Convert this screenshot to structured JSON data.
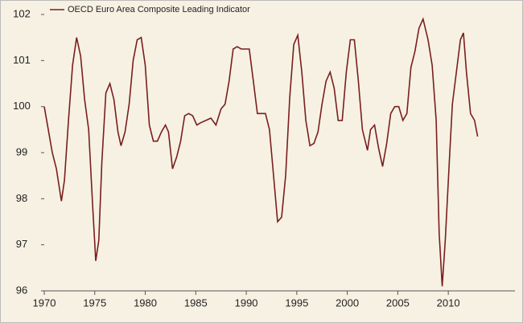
{
  "chart_data": {
    "type": "line",
    "x": [
      1970,
      1970.4,
      1970.8,
      1971.2,
      1971.7,
      1972.0,
      1972.4,
      1972.8,
      1973.2,
      1973.6,
      1974.0,
      1974.4,
      1974.8,
      1975.1,
      1975.4,
      1975.7,
      1976.1,
      1976.5,
      1976.9,
      1977.3,
      1977.6,
      1978.0,
      1978.4,
      1978.8,
      1979.2,
      1979.6,
      1980.0,
      1980.4,
      1980.8,
      1981.2,
      1981.6,
      1982.0,
      1982.3,
      1982.7,
      1983.1,
      1983.5,
      1983.9,
      1984.3,
      1984.7,
      1985.1,
      1985.5,
      1986.0,
      1986.5,
      1987.0,
      1987.5,
      1987.9,
      1988.3,
      1988.7,
      1989.1,
      1989.5,
      1989.9,
      1990.3,
      1990.7,
      1991.1,
      1991.5,
      1991.9,
      1992.3,
      1992.7,
      1993.1,
      1993.5,
      1993.9,
      1994.3,
      1994.7,
      1995.1,
      1995.5,
      1995.9,
      1996.3,
      1996.7,
      1997.1,
      1997.5,
      1997.9,
      1998.3,
      1998.7,
      1999.1,
      1999.5,
      1999.9,
      2000.3,
      2000.7,
      2001.1,
      2001.5,
      2002.0,
      2002.3,
      2002.7,
      2003.1,
      2003.5,
      2003.9,
      2004.3,
      2004.7,
      2005.1,
      2005.5,
      2005.9,
      2006.3,
      2006.7,
      2007.1,
      2007.5,
      2008.0,
      2008.4,
      2008.8,
      2009.1,
      2009.4,
      2009.7,
      2010.1,
      2010.4,
      2010.8,
      2011.2,
      2011.5,
      2011.8,
      2012.2,
      2012.6,
      2012.9
    ],
    "series": [
      {
        "name": "OECD Euro Area Composite Leading Indicator",
        "color": "#7a1e1e",
        "values": [
          100.0,
          99.5,
          99.0,
          98.65,
          97.95,
          98.4,
          99.7,
          100.9,
          101.5,
          101.1,
          100.15,
          99.5,
          97.8,
          96.65,
          97.1,
          98.8,
          100.3,
          100.5,
          100.15,
          99.45,
          99.15,
          99.45,
          100.05,
          101.0,
          101.45,
          101.5,
          100.9,
          99.6,
          99.25,
          99.25,
          99.45,
          99.6,
          99.45,
          98.65,
          98.9,
          99.25,
          99.8,
          99.85,
          99.8,
          99.6,
          99.65,
          99.7,
          99.75,
          99.6,
          99.95,
          100.05,
          100.55,
          101.25,
          101.3,
          101.25,
          101.25,
          101.25,
          100.55,
          99.85,
          99.85,
          99.85,
          99.5,
          98.5,
          97.5,
          97.6,
          98.5,
          100.2,
          101.35,
          101.55,
          100.75,
          99.7,
          99.15,
          99.2,
          99.45,
          100.05,
          100.55,
          100.75,
          100.4,
          99.7,
          99.7,
          100.75,
          101.45,
          101.45,
          100.55,
          99.5,
          99.05,
          99.5,
          99.6,
          99.1,
          98.7,
          99.2,
          99.85,
          100.0,
          100.0,
          99.7,
          99.85,
          100.85,
          101.2,
          101.7,
          101.9,
          101.45,
          100.9,
          99.7,
          97.25,
          96.1,
          97.1,
          98.8,
          100.05,
          100.75,
          101.45,
          101.6,
          100.75,
          99.85,
          99.7,
          99.35
        ]
      }
    ],
    "xlim": [
      1970,
      2016.6
    ],
    "ylim": [
      96,
      102
    ],
    "xticks": [
      1970,
      1975,
      1980,
      1985,
      1990,
      1995,
      2000,
      2005,
      2010
    ],
    "yticks": [
      96,
      97,
      98,
      99,
      100,
      101,
      102
    ],
    "legend": "top-left"
  }
}
